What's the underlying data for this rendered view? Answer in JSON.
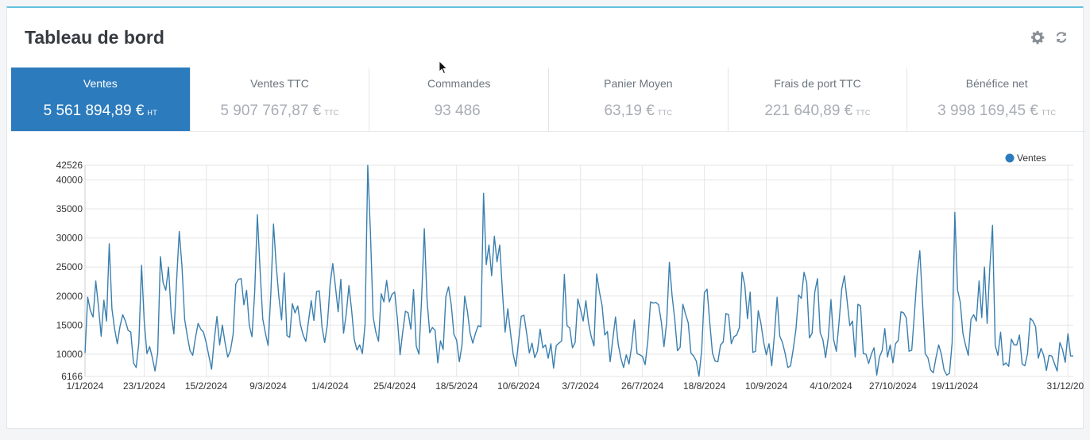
{
  "header": {
    "title": "Tableau de bord"
  },
  "toolbar": {
    "configure_icon": "gear-icon",
    "refresh_icon": "refresh-icon"
  },
  "kpis": [
    {
      "label": "Ventes",
      "value": "5 561 894,89 €",
      "suffix": "HT",
      "active": true
    },
    {
      "label": "Ventes TTC",
      "value": "5 907 767,87 €",
      "suffix": "TTC",
      "active": false
    },
    {
      "label": "Commandes",
      "value": "93 486",
      "suffix": "",
      "active": false
    },
    {
      "label": "Panier Moyen",
      "value": "63,19 €",
      "suffix": "TTC",
      "active": false
    },
    {
      "label": "Frais de port TTC",
      "value": "221 640,89 €",
      "suffix": "TTC",
      "active": false
    },
    {
      "label": "Bénéfice net",
      "value": "3 998 169,45 €",
      "suffix": "TTC",
      "active": false
    }
  ],
  "colors": {
    "accent": "#2b7bbd",
    "line": "#3a7fae",
    "grid": "#e6e6e6",
    "panel_border": "#63c2de"
  },
  "chart_data": {
    "type": "line",
    "legend": "Ventes",
    "legend_position": "top-right",
    "grid": true,
    "ylim": [
      6166,
      42526
    ],
    "y_ticks": [
      "6166",
      "10000",
      "15000",
      "20000",
      "25000",
      "30000",
      "35000",
      "40000",
      "42526"
    ],
    "y_tick_values": [
      6166,
      10000,
      15000,
      20000,
      25000,
      30000,
      35000,
      40000,
      42526
    ],
    "x_tick_labels": [
      "1/1/2024",
      "23/1/2024",
      "15/2/2024",
      "9/3/2024",
      "1/4/2024",
      "25/4/2024",
      "18/5/2024",
      "10/6/2024",
      "3/7/2024",
      "26/7/2024",
      "18/8/2024",
      "10/9/2024",
      "4/10/2024",
      "27/10/2024",
      "19/11/2024",
      "31/12/202"
    ],
    "x_tick_dates": [
      "2024-01-01",
      "2024-01-23",
      "2024-02-15",
      "2024-03-09",
      "2024-04-01",
      "2024-04-25",
      "2024-05-18",
      "2024-06-10",
      "2024-07-03",
      "2024-07-26",
      "2024-08-18",
      "2024-09-10",
      "2024-10-04",
      "2024-10-27",
      "2024-11-19",
      "2024-12-31"
    ],
    "series": [
      {
        "name": "Ventes",
        "x_start": "2024-01-01",
        "x_step_days": 1,
        "values": [
          10200,
          19800,
          17500,
          16400,
          22600,
          18200,
          13100,
          19300,
          15700,
          29000,
          17800,
          14300,
          11800,
          14800,
          16800,
          15700,
          14100,
          13800,
          8500,
          7700,
          12000,
          25300,
          15600,
          10100,
          11300,
          9400,
          7100,
          10200,
          26800,
          22300,
          21000,
          25000,
          16900,
          13500,
          22600,
          31100,
          25200,
          16000,
          13100,
          10600,
          9800,
          12800,
          15300,
          14300,
          13800,
          12000,
          9700,
          7400,
          12500,
          16500,
          11600,
          15000,
          12000,
          9500,
          10600,
          13400,
          22100,
          22900,
          23000,
          18500,
          21000,
          15000,
          13000,
          20600,
          34000,
          24600,
          16100,
          13600,
          11500,
          20400,
          32400,
          25300,
          19800,
          15900,
          24000,
          13200,
          12900,
          18700,
          17100,
          18300,
          15100,
          13300,
          12200,
          15700,
          19200,
          15800,
          20800,
          20900,
          14700,
          12000,
          15100,
          21900,
          25600,
          21600,
          17300,
          22900,
          13600,
          16900,
          21800,
          17600,
          12500,
          10700,
          11600,
          10100,
          15200,
          42500,
          30800,
          16400,
          13800,
          12200,
          20400,
          19000,
          22700,
          19000,
          20300,
          20700,
          16100,
          9900,
          13900,
          17400,
          17100,
          14300,
          21100,
          11400,
          10000,
          19600,
          31600,
          19400,
          13700,
          14600,
          14100,
          8500,
          12300,
          10800,
          19900,
          21600,
          18500,
          13400,
          12400,
          8700,
          11600,
          20000,
          17400,
          13600,
          11900,
          13600,
          14900,
          14700,
          37700,
          25400,
          28800,
          23500,
          30300,
          25900,
          28800,
          20800,
          13800,
          17800,
          13700,
          10000,
          7900,
          12200,
          16500,
          16700,
          13600,
          10200,
          11900,
          9400,
          10500,
          14300,
          11100,
          11600,
          9300,
          11800,
          7600,
          11500,
          11900,
          12300,
          23700,
          14900,
          14500,
          11100,
          12000,
          19500,
          17700,
          15700,
          19200,
          15300,
          13000,
          11400,
          23800,
          20800,
          18400,
          13300,
          13900,
          8700,
          12600,
          16400,
          11700,
          9300,
          7700,
          9900,
          8300,
          11400,
          15900,
          10100,
          9900,
          9600,
          8200,
          12300,
          19000,
          18800,
          18900,
          18500,
          15600,
          11300,
          15500,
          25800,
          20100,
          16000,
          10600,
          11200,
          18600,
          16900,
          15400,
          10200,
          9700,
          8800,
          6200,
          10700,
          20600,
          21200,
          15400,
          10200,
          8800,
          8700,
          11600,
          12100,
          17000,
          16800,
          11800,
          13000,
          13300,
          14600,
          24100,
          21900,
          16100,
          20700,
          10300,
          10500,
          17500,
          15300,
          12100,
          9900,
          11800,
          8000,
          13300,
          19800,
          13100,
          12000,
          10100,
          7700,
          8000,
          10900,
          14300,
          20200,
          19600,
          24100,
          22300,
          12800,
          13600,
          20700,
          23000,
          13700,
          12500,
          9400,
          12800,
          19400,
          12500,
          10500,
          15500,
          21200,
          23500,
          19200,
          14900,
          15700,
          9500,
          18600,
          18300,
          10100,
          10000,
          8400,
          10000,
          11100,
          6400,
          9500,
          10600,
          14400,
          9500,
          11600,
          8500,
          11800,
          12400,
          17300,
          17100,
          16200,
          10500,
          10700,
          17000,
          23700,
          27800,
          19000,
          10100,
          9400,
          7300,
          6800,
          9400,
          11600,
          10000,
          7300,
          6400,
          6700,
          12000,
          34400,
          21100,
          19000,
          13600,
          11500,
          9800,
          16000,
          16800,
          15700,
          22600,
          16300,
          25000,
          15300,
          25000,
          32200,
          11500,
          9800,
          13800,
          8100,
          8500,
          7900,
          12600,
          11600,
          11600,
          13300,
          8300,
          8000,
          10100,
          16200,
          15700,
          14700,
          9300,
          11000,
          9800,
          7200,
          9800,
          9700,
          8400,
          7100,
          12000,
          10800,
          8600,
          13500,
          9700,
          9700
        ]
      }
    ]
  }
}
